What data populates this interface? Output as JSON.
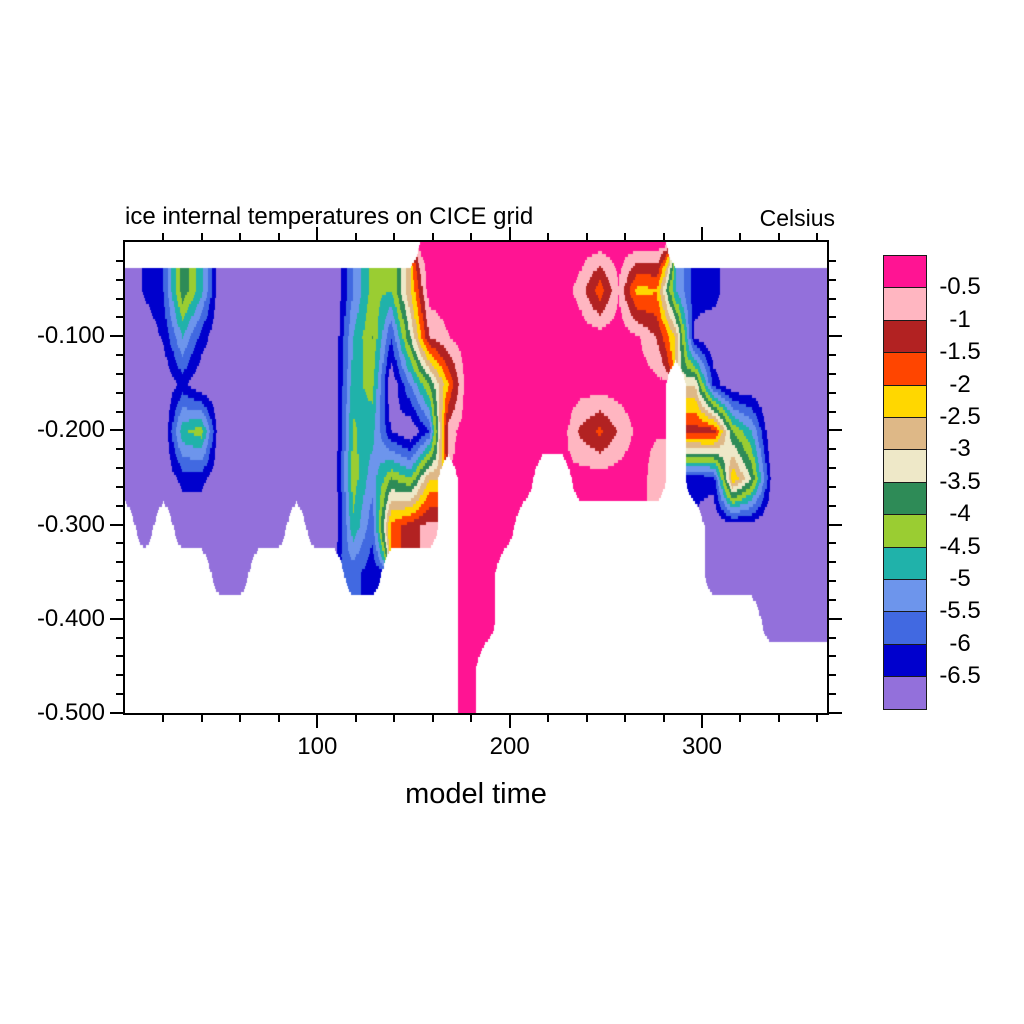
{
  "title": "ice internal temperatures on CICE grid",
  "units_label": "Celsius",
  "chart_data": {
    "type": "filled_contour",
    "title": "ice internal temperatures on CICE grid",
    "units": "Celsius",
    "xlabel": "model time",
    "x_axis": {
      "range": [
        0,
        365
      ],
      "major_ticks": [
        100,
        200,
        300
      ],
      "tick_labels": [
        "100",
        "200",
        "300"
      ],
      "minor_step": 20
    },
    "y_axis": {
      "range": [
        -0.5,
        0
      ],
      "major_ticks": [
        -0.1,
        -0.2,
        -0.3,
        -0.4,
        -0.5
      ],
      "tick_labels": [
        "-0.100",
        "-0.200",
        "-0.300",
        "-0.400",
        "-0.500"
      ],
      "minor_step": 0.02
    },
    "levels": [
      -6.5,
      -6,
      -5.5,
      -5,
      -4.5,
      -4,
      -3.5,
      -3,
      -2.5,
      -2,
      -1.5,
      -1,
      -0.5
    ],
    "level_colors_cold_to_warm": [
      "#9370db",
      "#0000cd",
      "#4169e1",
      "#6d95ec",
      "#20b2aa",
      "#9acd32",
      "#2e8b57",
      "#eee8c8",
      "#deb887",
      "#ffd700",
      "#ff4500",
      "#b22222",
      "#ffb6c1",
      "#ff1493"
    ],
    "colorbar": {
      "position": "right",
      "labels": [
        "-0.5",
        "-1",
        "-1.5",
        "-2",
        "-2.5",
        "-3",
        "-3.5",
        "-4",
        "-4.5",
        "-5",
        "-5.5",
        "-6",
        "-6.5"
      ]
    },
    "grid": {
      "note": "estimated ice internal temperature field (deg C); null = no ice (white)",
      "x": [
        0,
        10,
        20,
        30,
        40,
        50,
        60,
        70,
        80,
        90,
        100,
        110,
        120,
        130,
        140,
        150,
        160,
        170,
        180,
        190,
        200,
        210,
        220,
        230,
        240,
        250,
        260,
        270,
        280,
        290,
        300,
        310,
        320,
        330,
        340,
        350,
        360,
        370
      ],
      "depth": [
        0,
        -0.05,
        -0.1,
        -0.15,
        -0.2,
        -0.25,
        -0.3,
        -0.35,
        -0.4,
        -0.45,
        -0.5
      ],
      "temperature_c": [
        [
          null,
          null,
          null,
          null,
          null,
          null,
          null,
          null,
          null,
          null,
          null,
          null,
          null,
          null,
          null,
          null,
          -0.2,
          -0.2,
          -0.2,
          -0.2,
          -0.2,
          -0.2,
          -0.2,
          -0.2,
          -0.2,
          -0.2,
          -0.2,
          -0.2,
          -0.2,
          null,
          null,
          null,
          null,
          null,
          null,
          null,
          null,
          null
        ],
        [
          -7,
          -6.4,
          -6,
          -3.6,
          -4.8,
          -7,
          -7,
          -7,
          -7,
          -7,
          -7,
          -7,
          -5.5,
          -4.3,
          -4.5,
          -2.5,
          -0.2,
          -0.2,
          -0.2,
          -0.2,
          -0.2,
          -0.2,
          -0.2,
          -0.2,
          -0.7,
          -1.8,
          -0.5,
          -2.2,
          -2,
          -5,
          -6.3,
          -6.2,
          -7,
          -7,
          -7,
          -7,
          -7,
          -7
        ],
        [
          -7,
          -7,
          -6.4,
          -5,
          -6.2,
          -7,
          -7,
          -7,
          -7,
          -7,
          -7,
          -7,
          -5,
          -4,
          -6,
          -3.5,
          -1,
          -0.5,
          -0.2,
          -0.2,
          -0.2,
          -0.2,
          -0.2,
          -0.2,
          -0.2,
          -0.2,
          -0.2,
          -0.4,
          -1,
          -2.5,
          -6.6,
          -7,
          -7,
          -7,
          -7,
          -7,
          -7,
          -7
        ],
        [
          -7,
          -7,
          -7,
          -6.3,
          -7,
          -7,
          -7,
          -7,
          -7,
          -7,
          -7,
          -7,
          -4.7,
          -4.3,
          -7,
          -5.5,
          -4,
          -2,
          -0.2,
          -0.2,
          -0.2,
          -0.2,
          -0.2,
          -0.2,
          -0.2,
          -0.2,
          -0.2,
          -0.2,
          -0.3,
          null,
          -3,
          -6.2,
          -7,
          -7,
          -7,
          -7,
          -7,
          -7
        ],
        [
          -7,
          -7,
          -7,
          -4.6,
          -4.2,
          -7,
          -7,
          -7,
          -7,
          -7,
          -7,
          -7,
          -4.4,
          -4.8,
          -6.5,
          -7,
          -6,
          -0.7,
          -0.2,
          -0.2,
          -0.2,
          -0.2,
          -0.2,
          -0.2,
          -1.1,
          -1.6,
          -0.9,
          -0.3,
          -0.4,
          null,
          -1.2,
          -1.2,
          -4,
          -5,
          -7,
          -7,
          -7,
          -7
        ],
        [
          -7,
          -7,
          -7,
          -6.3,
          -6.3,
          -7,
          -7,
          -7,
          -7,
          -7,
          -7,
          -7,
          -4.2,
          -5.3,
          -4,
          -4.5,
          -2.5,
          null,
          -0.2,
          -0.2,
          -0.2,
          -0.2,
          null,
          null,
          -0.2,
          -0.2,
          -0.2,
          -0.2,
          -0.8,
          null,
          -6.4,
          -6.2,
          -2,
          -3.5,
          -6.5,
          -7,
          -7,
          -7
        ],
        [
          null,
          -7,
          null,
          -7,
          -7,
          -7,
          -7,
          -7,
          -7,
          null,
          -7,
          -7,
          -4.6,
          -5.8,
          -1.8,
          -1.2,
          -0.8,
          null,
          -0.2,
          -0.2,
          -0.2,
          null,
          null,
          null,
          null,
          null,
          null,
          null,
          null,
          null,
          null,
          -7,
          -6.8,
          -6.8,
          -7,
          -7,
          -7,
          -7
        ],
        [
          null,
          null,
          null,
          null,
          null,
          -7,
          -7,
          null,
          null,
          null,
          null,
          null,
          -5.8,
          -6.3,
          null,
          null,
          null,
          null,
          -0.2,
          -0.2,
          null,
          null,
          null,
          null,
          null,
          null,
          null,
          null,
          null,
          null,
          null,
          -7,
          -7,
          -7,
          -7,
          -7,
          -7,
          -7
        ],
        [
          null,
          null,
          null,
          null,
          null,
          null,
          null,
          null,
          null,
          null,
          null,
          null,
          null,
          null,
          null,
          null,
          null,
          null,
          -0.2,
          -0.2,
          null,
          null,
          null,
          null,
          null,
          null,
          null,
          null,
          null,
          null,
          null,
          null,
          null,
          null,
          -7,
          -7,
          -7,
          -7
        ],
        [
          null,
          null,
          null,
          null,
          null,
          null,
          null,
          null,
          null,
          null,
          null,
          null,
          null,
          null,
          null,
          null,
          null,
          null,
          -0.2,
          null,
          null,
          null,
          null,
          null,
          null,
          null,
          null,
          null,
          null,
          null,
          null,
          null,
          null,
          null,
          null,
          null,
          null,
          null
        ],
        [
          null,
          null,
          null,
          null,
          null,
          null,
          null,
          null,
          null,
          null,
          null,
          null,
          null,
          null,
          null,
          null,
          null,
          null,
          -0.2,
          null,
          null,
          null,
          null,
          null,
          null,
          null,
          null,
          null,
          null,
          null,
          null,
          null,
          null,
          null,
          null,
          null,
          null,
          null
        ]
      ]
    }
  }
}
